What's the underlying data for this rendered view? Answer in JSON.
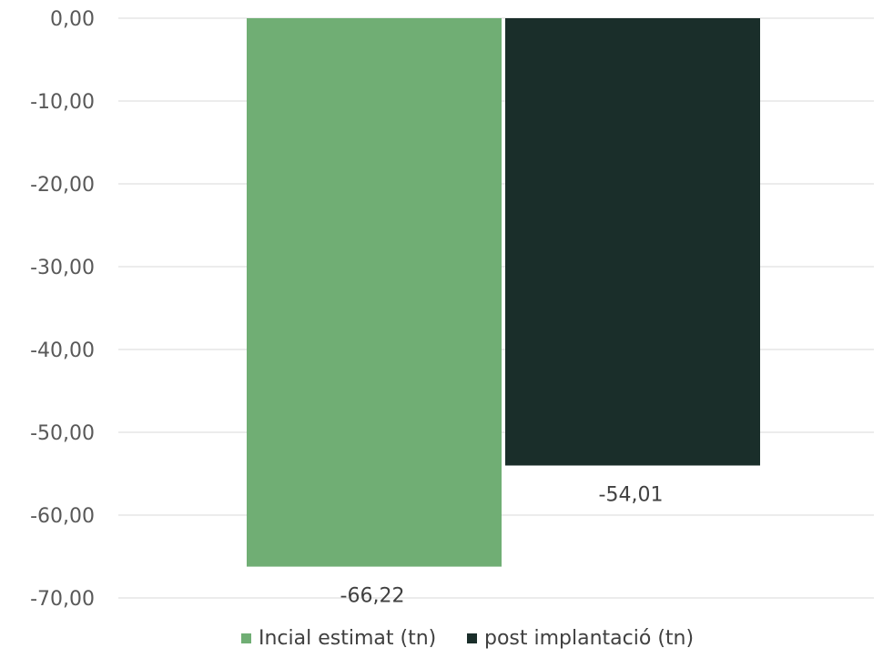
{
  "chart_data": {
    "type": "bar",
    "categories": [
      ""
    ],
    "series": [
      {
        "name": "Incial estimat (tn)",
        "values": [
          -66.22
        ],
        "color": "#70ae74",
        "label": "-66,22"
      },
      {
        "name": "post implantació (tn)",
        "values": [
          -54.01
        ],
        "color": "#1a2e2a",
        "label": "-54,01"
      }
    ],
    "ylim": [
      -70,
      0
    ],
    "yticks": [
      0,
      -10,
      -20,
      -30,
      -40,
      -50,
      -60,
      -70
    ],
    "ytick_labels": [
      "0,00",
      "-10,00",
      "-20,00",
      "-30,00",
      "-40,00",
      "-50,00",
      "-60,00",
      "-70,00"
    ],
    "grid": true,
    "legend_position": "bottom",
    "title": "",
    "xlabel": "",
    "ylabel": ""
  }
}
